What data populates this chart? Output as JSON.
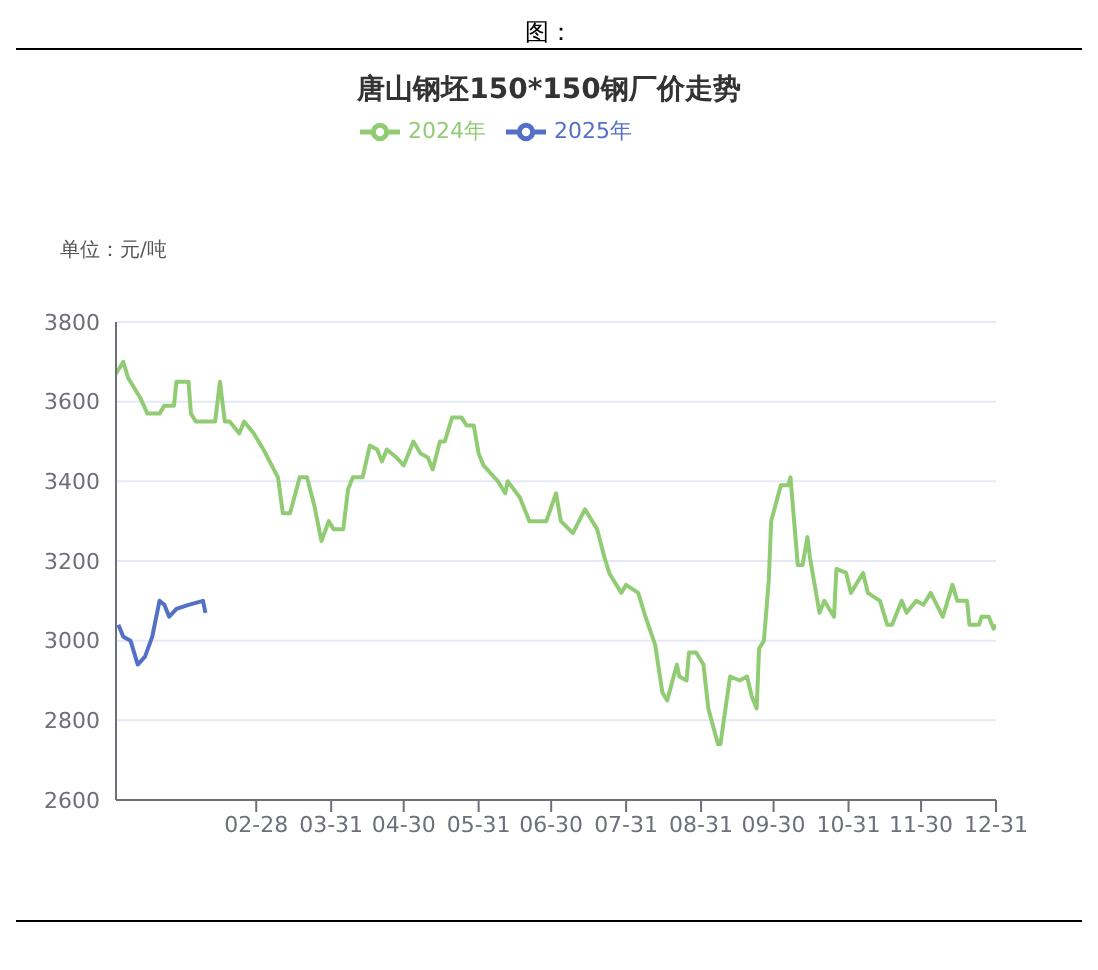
{
  "chart_data": {
    "type": "line",
    "title": "唐山钢坯150*150钢厂价走势",
    "ylabel": "单位：元/吨",
    "annotations": [
      "图："
    ],
    "legend": "top",
    "grid": "y",
    "marker": "none",
    "line_style": "solid",
    "xlim": [
      "--01-01",
      "--12-31"
    ],
    "xticks": [
      {
        "value": "--02-28",
        "label": "02-28"
      },
      {
        "value": "--03-31",
        "label": "03-31"
      },
      {
        "value": "--04-30",
        "label": "04-30"
      },
      {
        "value": "--05-31",
        "label": "05-31"
      },
      {
        "value": "--06-30",
        "label": "06-30"
      },
      {
        "value": "--07-31",
        "label": "07-31"
      },
      {
        "value": "--08-31",
        "label": "08-31"
      },
      {
        "value": "--09-30",
        "label": "09-30"
      },
      {
        "value": "--10-31",
        "label": "10-31"
      },
      {
        "value": "--11-30",
        "label": "11-30"
      },
      {
        "value": "--12-31",
        "label": "12-31"
      }
    ],
    "ylim": [
      2600,
      3800
    ],
    "yticks": [
      2600,
      2800,
      3000,
      3200,
      3400,
      3600,
      3800
    ],
    "series": [
      {
        "name": "2025年",
        "color": "#5470c6",
        "x": [
          "--01-02",
          "--01-04",
          "--01-07",
          "--01-10",
          "--01-13",
          "--01-16",
          "--01-19",
          "--01-21",
          "--01-23",
          "--01-26",
          "--01-31",
          "--02-06",
          "--02-07"
        ],
        "values": [
          3040,
          3010,
          3000,
          2940,
          2960,
          3010,
          3100,
          3090,
          3060,
          3080,
          3090,
          3100,
          3070
        ]
      },
      {
        "name": "2024年",
        "color": "#91cc75",
        "x": [
          "--01-01",
          "--01-04",
          "--01-06",
          "--01-11",
          "--01-14",
          "--01-19",
          "--01-21",
          "--01-25",
          "--01-26",
          "--01-31",
          "--02-01",
          "--02-03",
          "--02-11",
          "--02-13",
          "--02-15",
          "--02-17",
          "--02-21",
          "--02-23",
          "--02-27",
          "--03-03",
          "--03-09",
          "--03-11",
          "--03-14",
          "--03-18",
          "--03-21",
          "--03-24",
          "--03-27",
          "--03-30",
          "--04-01",
          "--04-05",
          "--04-07",
          "--04-09",
          "--04-13",
          "--04-16",
          "--04-19",
          "--04-21",
          "--04-23",
          "--04-27",
          "--04-30",
          "--05-04",
          "--05-07",
          "--05-10",
          "--05-12",
          "--05-15",
          "--05-17",
          "--05-20",
          "--05-24",
          "--05-26",
          "--05-29",
          "--05-31",
          "--06-02",
          "--06-08",
          "--06-11",
          "--06-12",
          "--06-17",
          "--06-21",
          "--06-28",
          "--07-02",
          "--07-04",
          "--07-09",
          "--07-14",
          "--07-19",
          "--07-22",
          "--07-24",
          "--07-26",
          "--07-29",
          "--07-31",
          "--08-05",
          "--08-08",
          "--08-12",
          "--08-15",
          "--08-17",
          "--08-21",
          "--08-22",
          "--08-25",
          "--08-26",
          "--08-29",
          "--09-01",
          "--09-03",
          "--09-07",
          "--09-08",
          "--09-12",
          "--09-16",
          "--09-19",
          "--09-21",
          "--09-23",
          "--09-24",
          "--09-26",
          "--09-28",
          "--09-29",
          "--10-03",
          "--10-06",
          "--10-07",
          "--10-10",
          "--10-12",
          "--10-14",
          "--10-15",
          "--10-19",
          "--10-21",
          "--10-25",
          "--10-26",
          "--10-30",
          "--11-01",
          "--11-06",
          "--11-08",
          "--11-13",
          "--11-16",
          "--11-18",
          "--11-22",
          "--11-24",
          "--11-28",
          "--12-01",
          "--12-04",
          "--12-09",
          "--12-13",
          "--12-15",
          "--12-19",
          "--12-20",
          "--12-24",
          "--12-25",
          "--12-28",
          "--12-30",
          "--12-31"
        ],
        "values": [
          3670,
          3700,
          3660,
          3610,
          3570,
          3570,
          3590,
          3590,
          3650,
          3650,
          3570,
          3550,
          3550,
          3650,
          3550,
          3550,
          3520,
          3550,
          3520,
          3480,
          3410,
          3320,
          3320,
          3410,
          3410,
          3340,
          3250,
          3300,
          3280,
          3280,
          3380,
          3410,
          3410,
          3490,
          3480,
          3450,
          3480,
          3460,
          3440,
          3500,
          3470,
          3460,
          3430,
          3500,
          3500,
          3560,
          3560,
          3540,
          3540,
          3470,
          3440,
          3400,
          3370,
          3400,
          3360,
          3300,
          3300,
          3370,
          3300,
          3270,
          3330,
          3280,
          3210,
          3170,
          3150,
          3120,
          3140,
          3120,
          3060,
          2990,
          2870,
          2850,
          2940,
          2910,
          2900,
          2970,
          2970,
          2940,
          2830,
          2740,
          2740,
          2910,
          2900,
          2910,
          2860,
          2830,
          2980,
          3000,
          3150,
          3300,
          3390,
          3390,
          3410,
          3190,
          3190,
          3260,
          3210,
          3070,
          3100,
          3060,
          3180,
          3170,
          3120,
          3170,
          3120,
          3100,
          3040,
          3040,
          3100,
          3070,
          3100,
          3090,
          3120,
          3060,
          3140,
          3100,
          3100,
          3040,
          3040,
          3060,
          3060,
          3030,
          3040
        ]
      }
    ]
  }
}
